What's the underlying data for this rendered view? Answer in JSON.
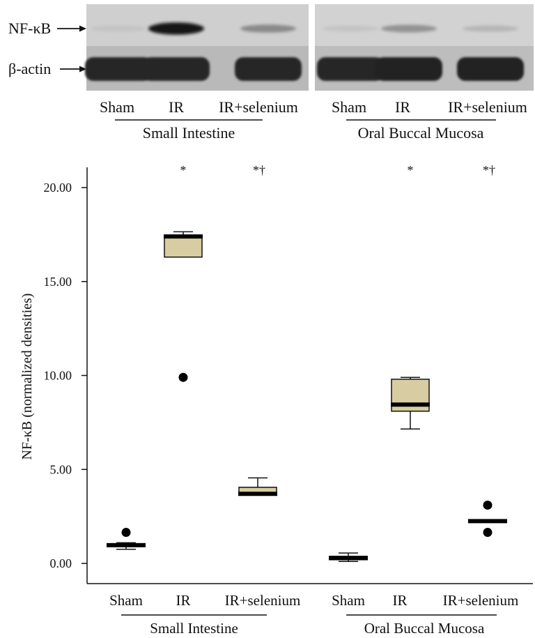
{
  "blot": {
    "row_labels": [
      "NF-κB",
      "β-actin"
    ],
    "panels": [
      {
        "group": "Small Intestine",
        "lanes": [
          "Sham",
          "IR",
          "IR+selenium"
        ],
        "nfkb_band_intensity": [
          0.05,
          0.95,
          0.35
        ],
        "actin_band_intensity": [
          0.85,
          0.85,
          0.85
        ]
      },
      {
        "group": "Oral Buccal Mucosa",
        "lanes": [
          "Sham",
          "IR",
          "IR+selenium"
        ],
        "nfkb_band_intensity": [
          0.05,
          0.3,
          0.12
        ],
        "actin_band_intensity": [
          0.85,
          0.9,
          0.88
        ]
      }
    ]
  },
  "chart_data": {
    "type": "box",
    "ylabel": "NF-κB (normalized densities)",
    "ylim": [
      -1.0,
      21.0
    ],
    "yticks": [
      0,
      5,
      10,
      15,
      20
    ],
    "ytick_labels": [
      "0.00",
      "5.00",
      "10.00",
      "15.00",
      "20.00"
    ],
    "box_fill": "#d8cca2",
    "groups": [
      {
        "name": "Small Intestine",
        "categories": [
          "Sham",
          "IR",
          "IR+selenium"
        ],
        "significance": [
          "",
          "*",
          "*†"
        ]
      },
      {
        "name": "Oral Buccal Mucosa",
        "categories": [
          "Sham",
          "IR",
          "IR+selenium"
        ],
        "significance": [
          "",
          "*",
          "*†"
        ]
      }
    ],
    "series": [
      {
        "group": "Small Intestine",
        "category": "Sham",
        "min": 0.75,
        "q1": 0.9,
        "median": 0.97,
        "q3": 1.05,
        "max": 1.1,
        "outliers": [
          1.65
        ]
      },
      {
        "group": "Small Intestine",
        "category": "IR",
        "min": 16.3,
        "q1": 16.3,
        "median": 17.4,
        "q3": 17.45,
        "max": 17.65,
        "outliers": [
          9.9
        ]
      },
      {
        "group": "Small Intestine",
        "category": "IR+selenium",
        "min": 3.7,
        "q1": 3.7,
        "median": 3.7,
        "q3": 4.05,
        "max": 4.55,
        "outliers": []
      },
      {
        "group": "Oral Buccal Mucosa",
        "category": "Sham",
        "min": 0.1,
        "q1": 0.2,
        "median": 0.28,
        "q3": 0.38,
        "max": 0.55,
        "outliers": []
      },
      {
        "group": "Oral Buccal Mucosa",
        "category": "IR",
        "min": 7.15,
        "q1": 8.1,
        "median": 8.45,
        "q3": 9.8,
        "max": 9.9,
        "outliers": []
      },
      {
        "group": "Oral Buccal Mucosa",
        "category": "IR+selenium",
        "min": 2.25,
        "q1": 2.25,
        "median": 2.25,
        "q3": 2.25,
        "max": 2.25,
        "outliers": [
          3.1,
          1.65
        ]
      }
    ]
  }
}
